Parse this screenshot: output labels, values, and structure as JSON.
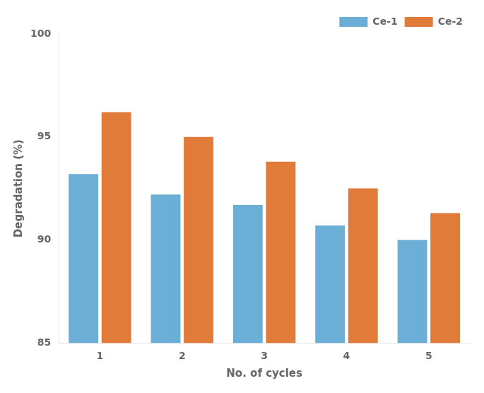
{
  "chart_data": {
    "type": "bar",
    "categories": [
      1,
      2,
      3,
      4,
      5
    ],
    "series": [
      {
        "name": "Ce-1",
        "color": "#6BAED6",
        "values": [
          93.2,
          92.2,
          91.7,
          90.7,
          90.0
        ]
      },
      {
        "name": "Ce-2",
        "color": "#E07B39",
        "values": [
          96.2,
          95.0,
          93.8,
          92.5,
          91.3
        ]
      }
    ],
    "xlabel": "No. of cycles",
    "ylabel": "Degradation (%)",
    "ylim": [
      85,
      100
    ],
    "yticks": [
      85,
      90,
      95,
      100
    ],
    "grid": false,
    "legend": "upper right"
  }
}
